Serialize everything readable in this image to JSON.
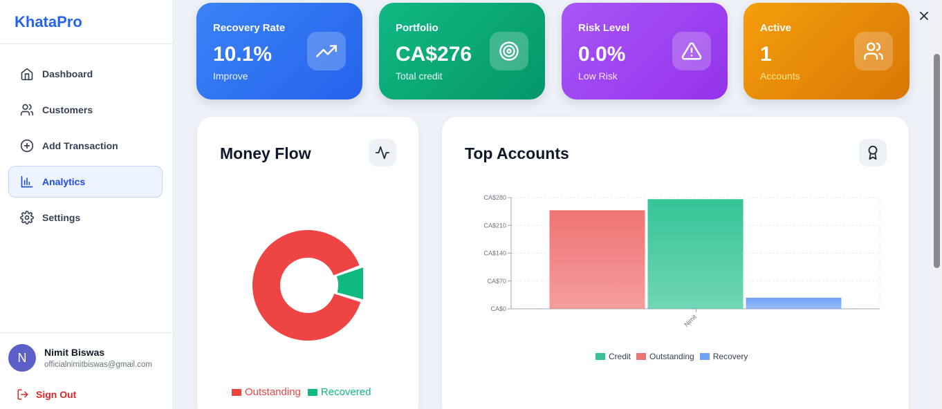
{
  "app": {
    "brand": "KhataPro"
  },
  "sidebar": {
    "items": [
      {
        "label": "Dashboard",
        "icon": "home-icon"
      },
      {
        "label": "Customers",
        "icon": "users-icon"
      },
      {
        "label": "Add Transaction",
        "icon": "plus-circle-icon"
      },
      {
        "label": "Analytics",
        "icon": "bar-chart-icon",
        "active": true
      },
      {
        "label": "Settings",
        "icon": "gear-icon"
      }
    ],
    "user": {
      "initial": "N",
      "name": "Nimit Biswas",
      "email": "officialnimitbiswas@gmail.com"
    },
    "signout": "Sign Out"
  },
  "stats": [
    {
      "title": "Recovery Rate",
      "value": "10.1%",
      "sub": "Improve",
      "icon": "trending-up-icon",
      "color": "#2563eb"
    },
    {
      "title": "Portfolio",
      "value": "CA$276",
      "sub": "Total credit",
      "icon": "target-icon",
      "color": "#059669"
    },
    {
      "title": "Risk Level",
      "value": "0.0%",
      "sub": "Low Risk",
      "icon": "alert-triangle-icon",
      "color": "#9333ea"
    },
    {
      "title": "Active",
      "value": "1",
      "sub": "Accounts",
      "icon": "users-icon",
      "color": "#d97706"
    }
  ],
  "money_flow": {
    "title": "Money Flow",
    "icon": "activity-icon",
    "legend": [
      "Outstanding",
      "Recovered"
    ]
  },
  "top_accounts": {
    "title": "Top Accounts",
    "icon": "award-icon"
  },
  "chart_data": [
    {
      "type": "pie",
      "variant": "donut",
      "labels": [
        "Outstanding",
        "Recovered"
      ],
      "values": [
        89.9,
        10.1
      ],
      "colors": [
        "#ef4444",
        "#10b981"
      ],
      "legend": "bottom"
    },
    {
      "type": "bar",
      "categories": [
        "Nimit"
      ],
      "series": [
        {
          "name": "Outstanding",
          "values": [
            248
          ],
          "color": "#f07373"
        },
        {
          "name": "Credit",
          "values": [
            276
          ],
          "color": "#34c497"
        },
        {
          "name": "Recovery",
          "values": [
            28
          ],
          "color": "#6fa0f7"
        }
      ],
      "legend_order": [
        "Credit",
        "Outstanding",
        "Recovery"
      ],
      "yticks": [
        "CA$0",
        "CA$70",
        "CA$140",
        "CA$210",
        "CA$280"
      ],
      "ylim": [
        0,
        280
      ],
      "grid": true,
      "legend": "bottom"
    }
  ]
}
